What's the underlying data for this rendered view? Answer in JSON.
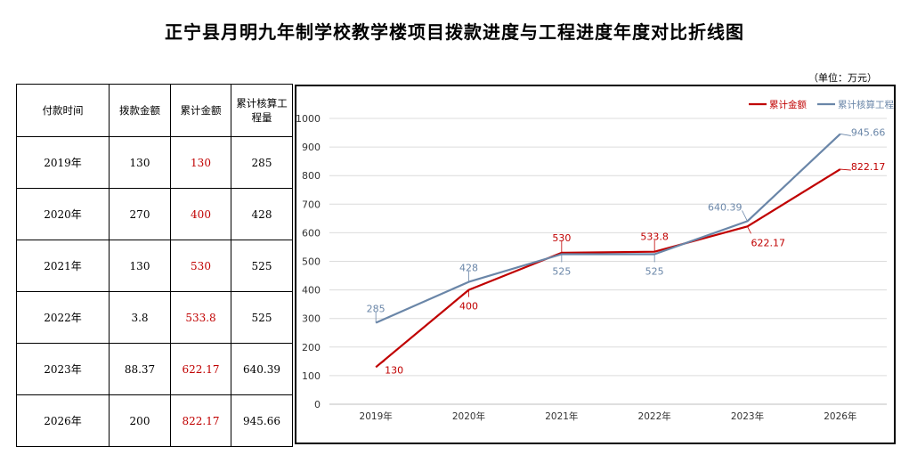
{
  "page": {
    "title": "正宁县月明九年制学校教学楼项目拨款进度与工程进度年度对比折线图",
    "unit": "（单位：万元）"
  },
  "table": {
    "headers": [
      "付款时间",
      "拨款金额",
      "累计金额",
      "累计核算工程量"
    ],
    "rows": [
      [
        "2019年",
        "130",
        "130",
        "285"
      ],
      [
        "2020年",
        "270",
        "400",
        "428"
      ],
      [
        "2021年",
        "130",
        "530",
        "525"
      ],
      [
        "2022年",
        "3.8",
        "533.8",
        "525"
      ],
      [
        "2023年",
        "88.37",
        "622.17",
        "640.39"
      ],
      [
        "2026年",
        "200",
        "822.17",
        "945.66"
      ]
    ]
  },
  "chart_data": {
    "type": "line",
    "title": "",
    "xlabel": "",
    "ylabel": "",
    "categories": [
      "2019年",
      "2020年",
      "2021年",
      "2022年",
      "2023年",
      "2026年"
    ],
    "ylim": [
      0,
      1000
    ],
    "yticks": [
      0,
      100,
      200,
      300,
      400,
      500,
      600,
      700,
      800,
      900,
      1000
    ],
    "grid": true,
    "legend_position": "top-right",
    "series": [
      {
        "name": "累计金额",
        "color": "#c00000",
        "values": [
          130,
          400,
          530,
          533.8,
          622.17,
          822.17
        ],
        "labels": [
          "130",
          "400",
          "530",
          "533.8",
          "622.17",
          "822.17"
        ]
      },
      {
        "name": "累计核算工程量",
        "color": "#6a86a8",
        "values": [
          285,
          428,
          525,
          525,
          640.39,
          945.66
        ],
        "labels": [
          "285",
          "428",
          "525",
          "525",
          "640.39",
          "945.66"
        ]
      }
    ]
  }
}
